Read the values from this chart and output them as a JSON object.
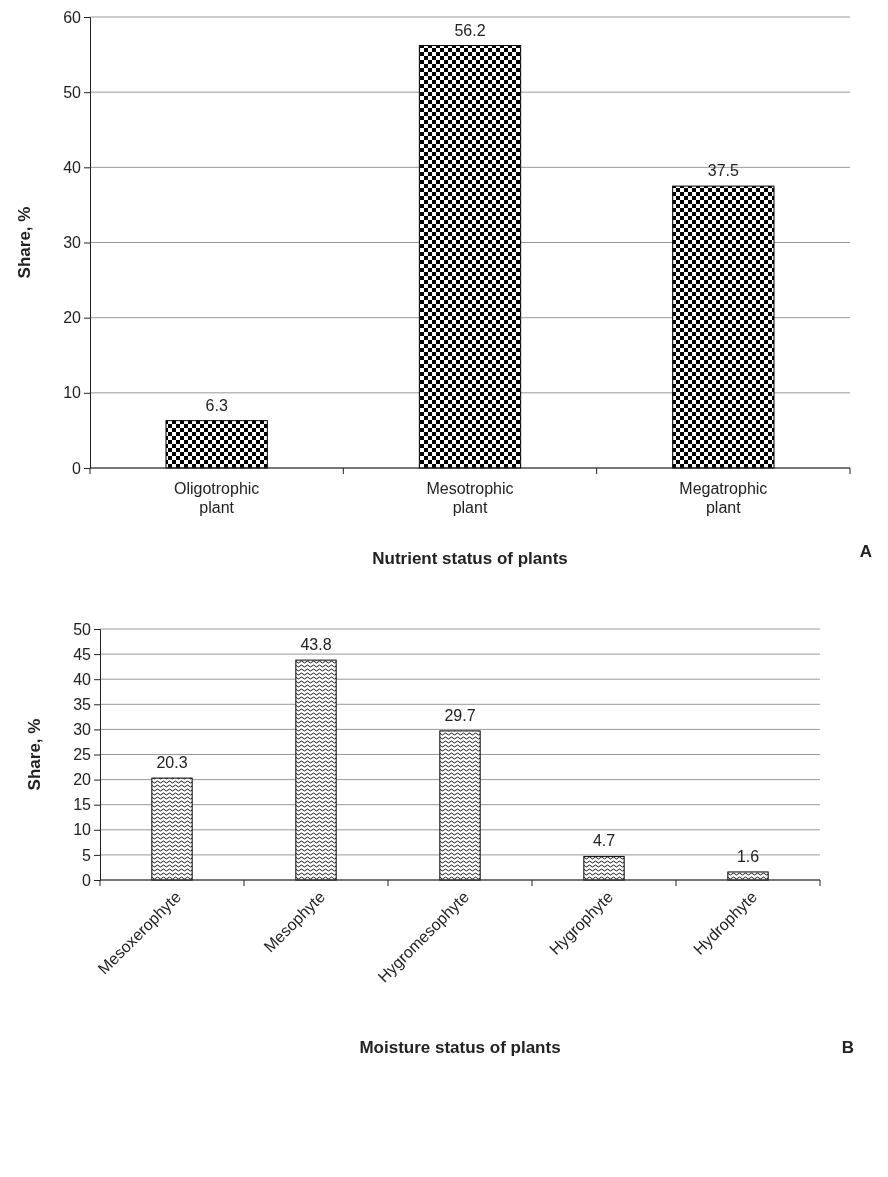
{
  "chart_data": [
    {
      "type": "bar",
      "categories": [
        "Oligotrophic plant",
        "Mesotrophic plant",
        "Megatrophic plant"
      ],
      "values": [
        6.3,
        56.2,
        37.5
      ],
      "color": "#000000",
      "ylim": [
        0,
        60
      ],
      "yticks": [
        0,
        10,
        20,
        30,
        40,
        50,
        60
      ],
      "grid": "y",
      "data_labels": true,
      "xlabel": "Nutrient status of plants",
      "ylabel": "Share, %",
      "annotations": [
        "A"
      ]
    },
    {
      "type": "bar",
      "categories": [
        "Mesoxerophyte",
        "Mesophyte",
        "Hygromesophyte",
        "Hygrophyte",
        "Hydrophyte"
      ],
      "values": [
        20.3,
        43.8,
        29.7,
        4.7,
        1.6
      ],
      "color": "#000000",
      "ylim": [
        0,
        50
      ],
      "yticks": [
        0,
        5,
        10,
        15,
        20,
        25,
        30,
        35,
        40,
        45,
        50
      ],
      "grid": "y",
      "data_labels": true,
      "xlabel": "Moisture status of plants",
      "ylabel": "Share, %",
      "annotations": [
        "B"
      ]
    }
  ]
}
